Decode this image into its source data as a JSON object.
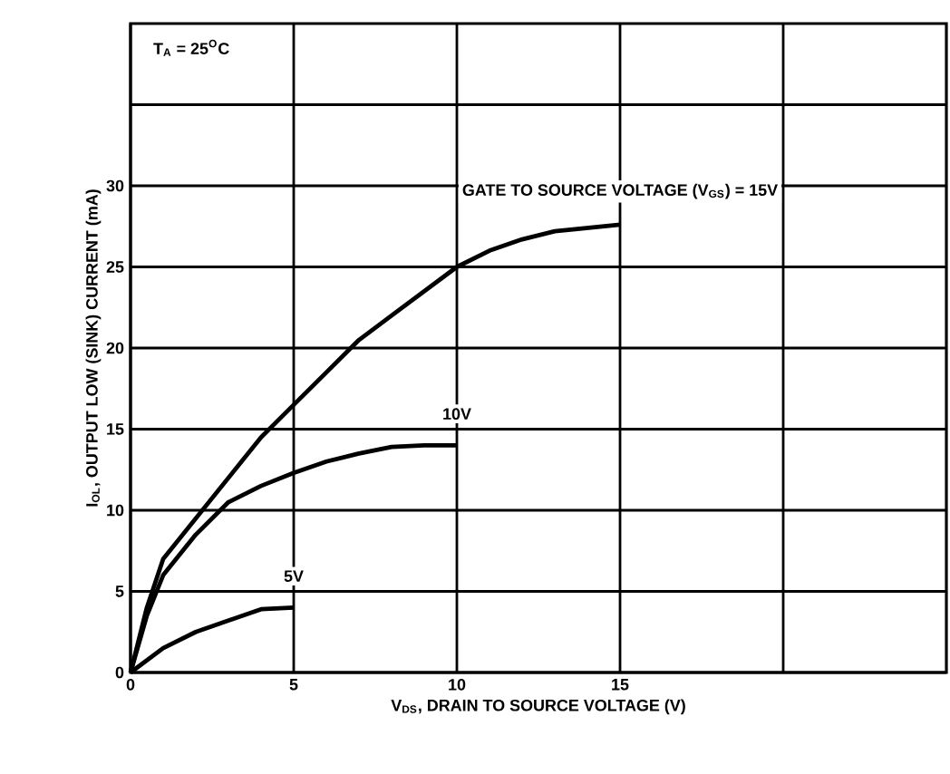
{
  "chart_data": {
    "type": "line",
    "xlabel": "V$_{DS}$, DRAIN TO SOURCE VOLTAGE (V)",
    "ylabel": "I$_{OL}$, OUTPUT LOW (SINK) CURRENT (mA)",
    "xlim": [
      0,
      25
    ],
    "ylim": [
      0,
      40
    ],
    "xticks": [
      0,
      5,
      10,
      15,
      {
        "value": 20,
        "label": null
      }
    ],
    "yticks": [
      0,
      5,
      10,
      15,
      20,
      25,
      30,
      {
        "value": 35,
        "label": null
      }
    ],
    "grid": true,
    "marker": "none",
    "line_style": "solid",
    "series": [
      {
        "name": "GATE TO SOURCE VOLTAGE (V$_{GS}$) = 15V",
        "color": "#000000",
        "x": [
          0,
          0.5,
          1,
          2,
          3,
          4,
          5,
          6,
          7,
          8,
          9,
          10,
          11,
          12,
          13,
          15
        ],
        "values": [
          0,
          4,
          7,
          9.5,
          12,
          14.5,
          16.5,
          18.5,
          20.5,
          22,
          23.5,
          25,
          26,
          26.7,
          27.2,
          27.6
        ]
      },
      {
        "name": "10V",
        "color": "#000000",
        "x": [
          0,
          0.5,
          1,
          2,
          3,
          4,
          5,
          6,
          7,
          8,
          9,
          10
        ],
        "values": [
          0,
          3.5,
          6,
          8.5,
          10.5,
          11.5,
          12.3,
          13,
          13.5,
          13.9,
          14,
          14
        ]
      },
      {
        "name": "5V",
        "color": "#000000",
        "x": [
          0,
          1,
          2,
          3,
          4,
          5
        ],
        "values": [
          0,
          1.5,
          2.5,
          3.2,
          3.9,
          4
        ]
      }
    ],
    "annotations": [
      "T$_{A}$ = 25$^{O}$C"
    ]
  }
}
